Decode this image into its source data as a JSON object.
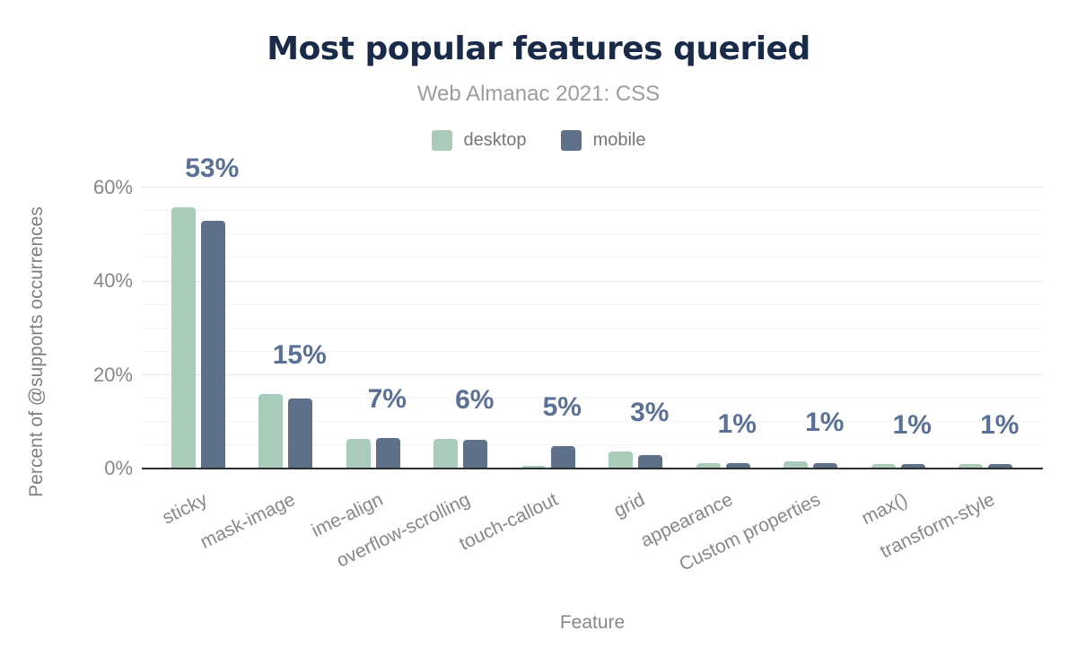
{
  "title": "Most popular features queried",
  "subtitle": "Web Almanac 2021: CSS",
  "legend": {
    "items": [
      {
        "label": "desktop",
        "color": "#a9cbba"
      },
      {
        "label": "mobile",
        "color": "#5f7189"
      }
    ]
  },
  "y_axis": {
    "title": "Percent of @supports occurrences",
    "tick_labels": [
      "0%",
      "20%",
      "40%",
      "60%"
    ],
    "tick_values": [
      0,
      20,
      40,
      60
    ]
  },
  "x_axis": {
    "title": "Feature"
  },
  "chart_data": {
    "type": "bar",
    "title": "Most popular features queried",
    "subtitle": "Web Almanac 2021: CSS",
    "categories": [
      "sticky",
      "mask-image",
      "ime-align",
      "overflow-scrolling",
      "touch-callout",
      "grid",
      "appearance",
      "Custom properties",
      "max()",
      "transform-style"
    ],
    "series": [
      {
        "name": "desktop",
        "color": "#a9cbba",
        "values": [
          55.7,
          15.8,
          6.4,
          6.3,
          0.6,
          3.6,
          1.2,
          1.6,
          0.9,
          1.0
        ]
      },
      {
        "name": "mobile",
        "color": "#5f7189",
        "values": [
          52.9,
          15.0,
          6.6,
          6.1,
          4.7,
          2.9,
          1.1,
          1.2,
          1.0,
          1.0
        ]
      }
    ],
    "bar_labels": [
      "53%",
      "15%",
      "7%",
      "6%",
      "5%",
      "3%",
      "1%",
      "1%",
      "1%",
      "1%"
    ],
    "xlabel": "Feature",
    "ylabel": "Percent of @supports occurrences",
    "ylim": [
      0,
      60
    ],
    "y_major_ticks": [
      0,
      20,
      40,
      60
    ],
    "y_minor_step": 5,
    "grid": true,
    "legend_position": "top"
  },
  "colors": {
    "title": "#1a2b49",
    "subtitle": "#9b9da0",
    "axis_text": "#85878a",
    "data_label": "#5a7094",
    "axis_line": "#2c2e30",
    "grid_major": "#e6e7e8",
    "grid_minor": "#f3f4f5",
    "desktop": "#a9cbba",
    "mobile": "#5f7189",
    "background": "#ffffff"
  }
}
